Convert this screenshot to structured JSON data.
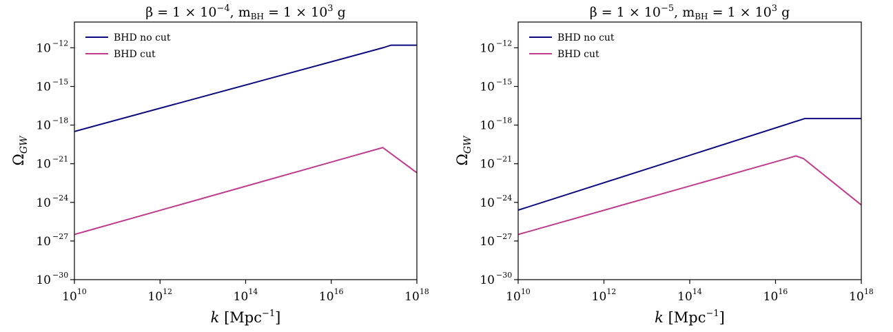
{
  "chart_data": [
    {
      "type": "line",
      "title": "β = 1 × 10⁻⁴,  m_BH = 1 × 10³ g",
      "title_parts": {
        "lead": "β = 1 × 10",
        "beta_exp": "−4",
        "mid": ",  m",
        "sub": "BH",
        "tail": " = 1 × 10",
        "mass_exp": "3",
        "unit": " g"
      },
      "xlabel": "k [Mpc⁻¹]",
      "ylabel": "Ω_GW",
      "x_scale": "log",
      "y_scale": "log",
      "xlim": [
        10000000000.0,
        1e+18
      ],
      "ylim": [
        1e-30,
        1e-10
      ],
      "x_ticks": [
        10,
        12,
        14,
        16,
        18
      ],
      "y_ticks": [
        -30,
        -27,
        -24,
        -21,
        -18,
        -15,
        -12
      ],
      "legend": "top-left",
      "series": [
        {
          "name": "BHD no cut",
          "color": "#0a0a80",
          "points": [
            [
              10000000000.0,
              3.2e-19
            ],
            [
              1.6e+17,
              1e-12
            ],
            [
              2.5e+17,
              1.6e-12
            ],
            [
              1e+18,
              1.6e-12
            ]
          ]
        },
        {
          "name": "BHD cut",
          "color": "#bf3a8c",
          "points": [
            [
              10000000000.0,
              3.2e-27
            ],
            [
              1.6e+17,
              1.8e-20
            ],
            [
              2.5e+17,
              6e-21
            ],
            [
              1e+18,
              2e-22
            ]
          ]
        }
      ]
    },
    {
      "type": "line",
      "title": "β = 1 × 10⁻⁵,  m_BH = 1 × 10³ g",
      "title_parts": {
        "lead": "β = 1 × 10",
        "beta_exp": "−5",
        "mid": ",  m",
        "sub": "BH",
        "tail": " = 1 × 10",
        "mass_exp": "3",
        "unit": " g"
      },
      "xlabel": "k [Mpc⁻¹]",
      "ylabel": "Ω_GW",
      "x_scale": "log",
      "y_scale": "log",
      "xlim": [
        10000000000.0,
        1e+18
      ],
      "ylim": [
        1e-30,
        1e-10
      ],
      "x_ticks": [
        10,
        12,
        14,
        16,
        18
      ],
      "y_ticks": [
        -30,
        -27,
        -24,
        -21,
        -18,
        -15,
        -12
      ],
      "legend": "top-left",
      "series": [
        {
          "name": "BHD no cut",
          "color": "#0a0a80",
          "points": [
            [
              10000000000.0,
              2.5e-25
            ],
            [
              4.8e+16,
              3.2e-18
            ],
            [
              1e+18,
              3.2e-18
            ]
          ]
        },
        {
          "name": "BHD cut",
          "color": "#bf3a8c",
          "points": [
            [
              10000000000.0,
              3.2e-27
            ],
            [
              3e+16,
              4e-21
            ],
            [
              4.5e+16,
              2.5e-21
            ],
            [
              1e+18,
              6.3e-25
            ]
          ]
        }
      ]
    }
  ]
}
